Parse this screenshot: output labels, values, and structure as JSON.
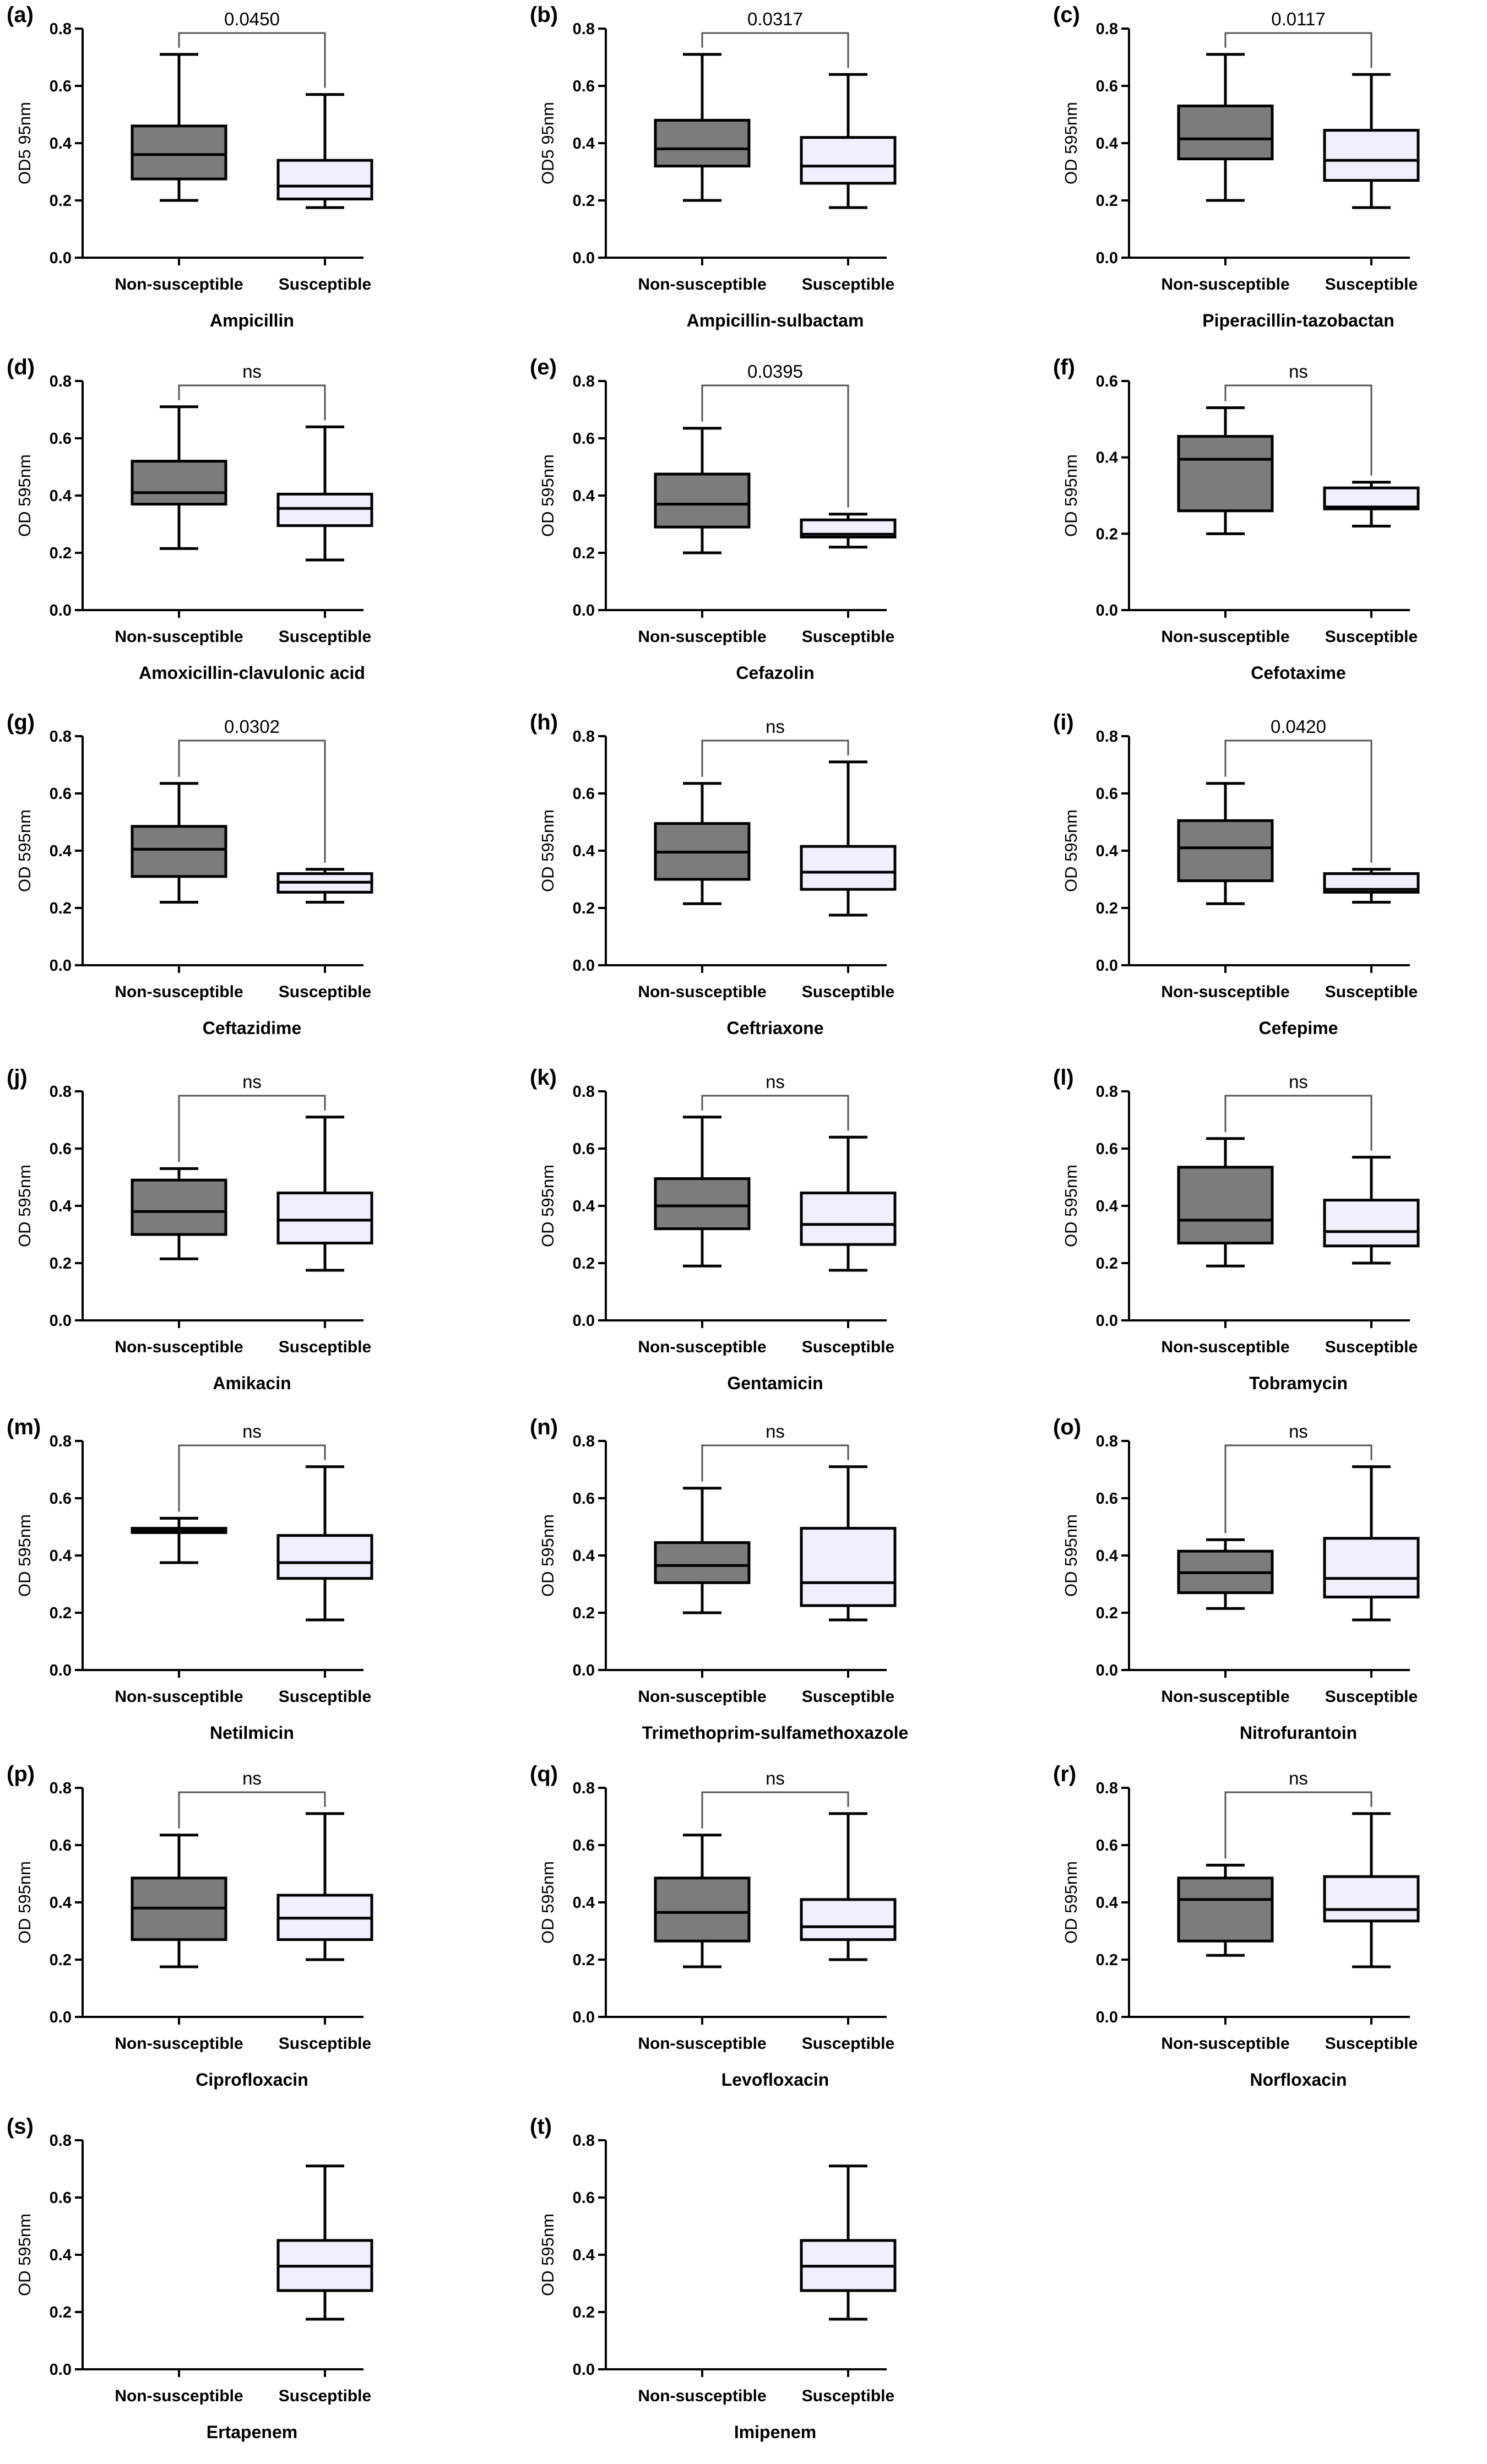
{
  "colors": {
    "non_susceptible_fill": "#7c7c7c",
    "susceptible_fill": "#efefff",
    "stroke": "#000000",
    "bracket": "#555555"
  },
  "chart_data": [
    {
      "type": "box",
      "panel": "(a)",
      "title": "Ampicillin",
      "ylabel": "OD5 95nm",
      "categories": [
        "Non-susceptible",
        "Susceptible"
      ],
      "ylim": [
        0,
        0.8
      ],
      "yticks": [
        "0.0",
        "0.2",
        "0.4",
        "0.6",
        "0.8"
      ],
      "significance": "0.0450",
      "boxes": [
        {
          "min": 0.2,
          "q1": 0.275,
          "median": 0.36,
          "q3": 0.46,
          "max": 0.71
        },
        {
          "min": 0.175,
          "q1": 0.205,
          "median": 0.25,
          "q3": 0.34,
          "max": 0.57
        }
      ]
    },
    {
      "type": "box",
      "panel": "(b)",
      "title": "Ampicillin-sulbactam",
      "ylabel": "OD5 95nm",
      "categories": [
        "Non-susceptible",
        "Susceptible"
      ],
      "ylim": [
        0,
        0.8
      ],
      "yticks": [
        "0.0",
        "0.2",
        "0.4",
        "0.6",
        "0.8"
      ],
      "significance": "0.0317",
      "boxes": [
        {
          "min": 0.2,
          "q1": 0.32,
          "median": 0.38,
          "q3": 0.48,
          "max": 0.71
        },
        {
          "min": 0.175,
          "q1": 0.26,
          "median": 0.32,
          "q3": 0.42,
          "max": 0.64
        }
      ]
    },
    {
      "type": "box",
      "panel": "(c)",
      "title": "Piperacillin-tazobactan",
      "ylabel": "OD 595nm",
      "categories": [
        "Non-susceptible",
        "Susceptible"
      ],
      "ylim": [
        0,
        0.8
      ],
      "yticks": [
        "0.0",
        "0.2",
        "0.4",
        "0.6",
        "0.8"
      ],
      "significance": "0.0117",
      "boxes": [
        {
          "min": 0.2,
          "q1": 0.345,
          "median": 0.415,
          "q3": 0.53,
          "max": 0.71
        },
        {
          "min": 0.175,
          "q1": 0.27,
          "median": 0.34,
          "q3": 0.445,
          "max": 0.64
        }
      ]
    },
    {
      "type": "box",
      "panel": "(d)",
      "title": "Amoxicillin-clavulonic acid",
      "ylabel": "OD 595nm",
      "categories": [
        "Non-susceptible",
        "Susceptible"
      ],
      "ylim": [
        0,
        0.8
      ],
      "yticks": [
        "0.0",
        "0.2",
        "0.4",
        "0.6",
        "0.8"
      ],
      "significance": "ns",
      "boxes": [
        {
          "min": 0.215,
          "q1": 0.37,
          "median": 0.41,
          "q3": 0.52,
          "max": 0.71
        },
        {
          "min": 0.175,
          "q1": 0.295,
          "median": 0.355,
          "q3": 0.405,
          "max": 0.64
        }
      ]
    },
    {
      "type": "box",
      "panel": "(e)",
      "title": "Cefazolin",
      "ylabel": "OD 595nm",
      "categories": [
        "Non-susceptible",
        "Susceptible"
      ],
      "ylim": [
        0,
        0.8
      ],
      "yticks": [
        "0.0",
        "0.2",
        "0.4",
        "0.6",
        "0.8"
      ],
      "significance": "0.0395",
      "boxes": [
        {
          "min": 0.2,
          "q1": 0.29,
          "median": 0.37,
          "q3": 0.475,
          "max": 0.635
        },
        {
          "min": 0.22,
          "q1": 0.255,
          "median": 0.265,
          "q3": 0.315,
          "max": 0.335
        }
      ]
    },
    {
      "type": "box",
      "panel": "(f)",
      "title": "Cefotaxime",
      "ylabel": "OD 595nm",
      "categories": [
        "Non-susceptible",
        "Susceptible"
      ],
      "ylim": [
        0,
        0.6
      ],
      "yticks": [
        "0.0",
        "0.2",
        "0.4",
        "0.6"
      ],
      "significance": "ns",
      "boxes": [
        {
          "min": 0.2,
          "q1": 0.26,
          "median": 0.395,
          "q3": 0.455,
          "max": 0.53
        },
        {
          "min": 0.22,
          "q1": 0.265,
          "median": 0.27,
          "q3": 0.32,
          "max": 0.335
        }
      ]
    },
    {
      "type": "box",
      "panel": "(g)",
      "title": "Ceftazidime",
      "ylabel": "OD 595nm",
      "categories": [
        "Non-susceptible",
        "Susceptible"
      ],
      "ylim": [
        0,
        0.8
      ],
      "yticks": [
        "0.0",
        "0.2",
        "0.4",
        "0.6",
        "0.8"
      ],
      "significance": "0.0302",
      "boxes": [
        {
          "min": 0.22,
          "q1": 0.31,
          "median": 0.405,
          "q3": 0.485,
          "max": 0.635
        },
        {
          "min": 0.22,
          "q1": 0.255,
          "median": 0.29,
          "q3": 0.32,
          "max": 0.335
        }
      ]
    },
    {
      "type": "box",
      "panel": "(h)",
      "title": "Ceftriaxone",
      "ylabel": "OD 595nm",
      "categories": [
        "Non-susceptible",
        "Susceptible"
      ],
      "ylim": [
        0,
        0.8
      ],
      "yticks": [
        "0.0",
        "0.2",
        "0.4",
        "0.6",
        "0.8"
      ],
      "significance": "ns",
      "boxes": [
        {
          "min": 0.215,
          "q1": 0.3,
          "median": 0.395,
          "q3": 0.495,
          "max": 0.635
        },
        {
          "min": 0.175,
          "q1": 0.265,
          "median": 0.325,
          "q3": 0.415,
          "max": 0.71
        }
      ]
    },
    {
      "type": "box",
      "panel": "(i)",
      "title": "Cefepime",
      "ylabel": "OD 595nm",
      "categories": [
        "Non-susceptible",
        "Susceptible"
      ],
      "ylim": [
        0,
        0.8
      ],
      "yticks": [
        "0.0",
        "0.2",
        "0.4",
        "0.6",
        "0.8"
      ],
      "significance": "0.0420",
      "boxes": [
        {
          "min": 0.215,
          "q1": 0.295,
          "median": 0.41,
          "q3": 0.505,
          "max": 0.635
        },
        {
          "min": 0.22,
          "q1": 0.255,
          "median": 0.265,
          "q3": 0.32,
          "max": 0.335
        }
      ]
    },
    {
      "type": "box",
      "panel": "(j)",
      "title": "Amikacin",
      "ylabel": "OD 595nm",
      "categories": [
        "Non-susceptible",
        "Susceptible"
      ],
      "ylim": [
        0,
        0.8
      ],
      "yticks": [
        "0.0",
        "0.2",
        "0.4",
        "0.6",
        "0.8"
      ],
      "significance": "ns",
      "boxes": [
        {
          "min": 0.215,
          "q1": 0.3,
          "median": 0.38,
          "q3": 0.49,
          "max": 0.53
        },
        {
          "min": 0.175,
          "q1": 0.27,
          "median": 0.35,
          "q3": 0.445,
          "max": 0.71
        }
      ]
    },
    {
      "type": "box",
      "panel": "(k)",
      "title": "Gentamicin",
      "ylabel": "OD 595nm",
      "categories": [
        "Non-susceptible",
        "Susceptible"
      ],
      "ylim": [
        0,
        0.8
      ],
      "yticks": [
        "0.0",
        "0.2",
        "0.4",
        "0.6",
        "0.8"
      ],
      "significance": "ns",
      "boxes": [
        {
          "min": 0.19,
          "q1": 0.32,
          "median": 0.4,
          "q3": 0.495,
          "max": 0.71
        },
        {
          "min": 0.175,
          "q1": 0.265,
          "median": 0.335,
          "q3": 0.445,
          "max": 0.64
        }
      ]
    },
    {
      "type": "box",
      "panel": "(l)",
      "title": "Tobramycin",
      "ylabel": "OD 595nm",
      "categories": [
        "Non-susceptible",
        "Susceptible"
      ],
      "ylim": [
        0,
        0.8
      ],
      "yticks": [
        "0.0",
        "0.2",
        "0.4",
        "0.6",
        "0.8"
      ],
      "significance": "ns",
      "boxes": [
        {
          "min": 0.19,
          "q1": 0.27,
          "median": 0.35,
          "q3": 0.535,
          "max": 0.635
        },
        {
          "min": 0.2,
          "q1": 0.26,
          "median": 0.31,
          "q3": 0.42,
          "max": 0.57
        }
      ]
    },
    {
      "type": "box",
      "panel": "(m)",
      "title": "Netilmicin",
      "ylabel": "OD 595nm",
      "categories": [
        "Non-susceptible",
        "Susceptible"
      ],
      "ylim": [
        0,
        0.8
      ],
      "yticks": [
        "0.0",
        "0.2",
        "0.4",
        "0.6",
        "0.8"
      ],
      "significance": "ns",
      "boxes": [
        {
          "min": 0.375,
          "q1": 0.48,
          "median": 0.485,
          "q3": 0.495,
          "max": 0.53
        },
        {
          "min": 0.175,
          "q1": 0.32,
          "median": 0.375,
          "q3": 0.47,
          "max": 0.71
        }
      ]
    },
    {
      "type": "box",
      "panel": "(n)",
      "title": "Trimethoprim-sulfamethoxazole",
      "ylabel": "OD 595nm",
      "categories": [
        "Non-susceptible",
        "Susceptible"
      ],
      "ylim": [
        0,
        0.8
      ],
      "yticks": [
        "0.0",
        "0.2",
        "0.4",
        "0.6",
        "0.8"
      ],
      "significance": "ns",
      "boxes": [
        {
          "min": 0.2,
          "q1": 0.305,
          "median": 0.365,
          "q3": 0.445,
          "max": 0.635
        },
        {
          "min": 0.175,
          "q1": 0.225,
          "median": 0.305,
          "q3": 0.495,
          "max": 0.71
        }
      ]
    },
    {
      "type": "box",
      "panel": "(o)",
      "title": "Nitrofurantoin",
      "ylabel": "OD 595nm",
      "categories": [
        "Non-susceptible",
        "Susceptible"
      ],
      "ylim": [
        0,
        0.8
      ],
      "yticks": [
        "0.0",
        "0.2",
        "0.4",
        "0.6",
        "0.8"
      ],
      "significance": "ns",
      "boxes": [
        {
          "min": 0.215,
          "q1": 0.27,
          "median": 0.34,
          "q3": 0.415,
          "max": 0.455
        },
        {
          "min": 0.175,
          "q1": 0.255,
          "median": 0.32,
          "q3": 0.46,
          "max": 0.71
        }
      ]
    },
    {
      "type": "box",
      "panel": "(p)",
      "title": "Ciprofloxacin",
      "ylabel": "OD 595nm",
      "categories": [
        "Non-susceptible",
        "Susceptible"
      ],
      "ylim": [
        0,
        0.8
      ],
      "yticks": [
        "0.0",
        "0.2",
        "0.4",
        "0.6",
        "0.8"
      ],
      "significance": "ns",
      "boxes": [
        {
          "min": 0.175,
          "q1": 0.27,
          "median": 0.38,
          "q3": 0.485,
          "max": 0.635
        },
        {
          "min": 0.2,
          "q1": 0.27,
          "median": 0.345,
          "q3": 0.425,
          "max": 0.71
        }
      ]
    },
    {
      "type": "box",
      "panel": "(q)",
      "title": "Levofloxacin",
      "ylabel": "OD 595nm",
      "categories": [
        "Non-susceptible",
        "Susceptible"
      ],
      "ylim": [
        0,
        0.8
      ],
      "yticks": [
        "0.0",
        "0.2",
        "0.4",
        "0.6",
        "0.8"
      ],
      "significance": "ns",
      "boxes": [
        {
          "min": 0.175,
          "q1": 0.265,
          "median": 0.365,
          "q3": 0.485,
          "max": 0.635
        },
        {
          "min": 0.2,
          "q1": 0.27,
          "median": 0.315,
          "q3": 0.41,
          "max": 0.71
        }
      ]
    },
    {
      "type": "box",
      "panel": "(r)",
      "title": "Norfloxacin",
      "ylabel": "OD 595nm",
      "categories": [
        "Non-susceptible",
        "Susceptible"
      ],
      "ylim": [
        0,
        0.8
      ],
      "yticks": [
        "0.0",
        "0.2",
        "0.4",
        "0.6",
        "0.8"
      ],
      "significance": "ns",
      "boxes": [
        {
          "min": 0.215,
          "q1": 0.265,
          "median": 0.41,
          "q3": 0.485,
          "max": 0.53
        },
        {
          "min": 0.175,
          "q1": 0.335,
          "median": 0.375,
          "q3": 0.49,
          "max": 0.71
        }
      ]
    },
    {
      "type": "box",
      "panel": "(s)",
      "title": "Ertapenem",
      "ylabel": "OD 595nm",
      "categories": [
        "Non-susceptible",
        "Susceptible"
      ],
      "ylim": [
        0,
        0.8
      ],
      "yticks": [
        "0.0",
        "0.2",
        "0.4",
        "0.6",
        "0.8"
      ],
      "significance": "",
      "boxes": [
        null,
        {
          "min": 0.175,
          "q1": 0.275,
          "median": 0.36,
          "q3": 0.45,
          "max": 0.71
        }
      ]
    },
    {
      "type": "box",
      "panel": "(t)",
      "title": "Imipenem",
      "ylabel": "OD 595nm",
      "categories": [
        "Non-susceptible",
        "Susceptible"
      ],
      "ylim": [
        0,
        0.8
      ],
      "yticks": [
        "0.0",
        "0.2",
        "0.4",
        "0.6",
        "0.8"
      ],
      "significance": "",
      "boxes": [
        null,
        {
          "min": 0.175,
          "q1": 0.275,
          "median": 0.36,
          "q3": 0.45,
          "max": 0.71
        }
      ]
    }
  ]
}
